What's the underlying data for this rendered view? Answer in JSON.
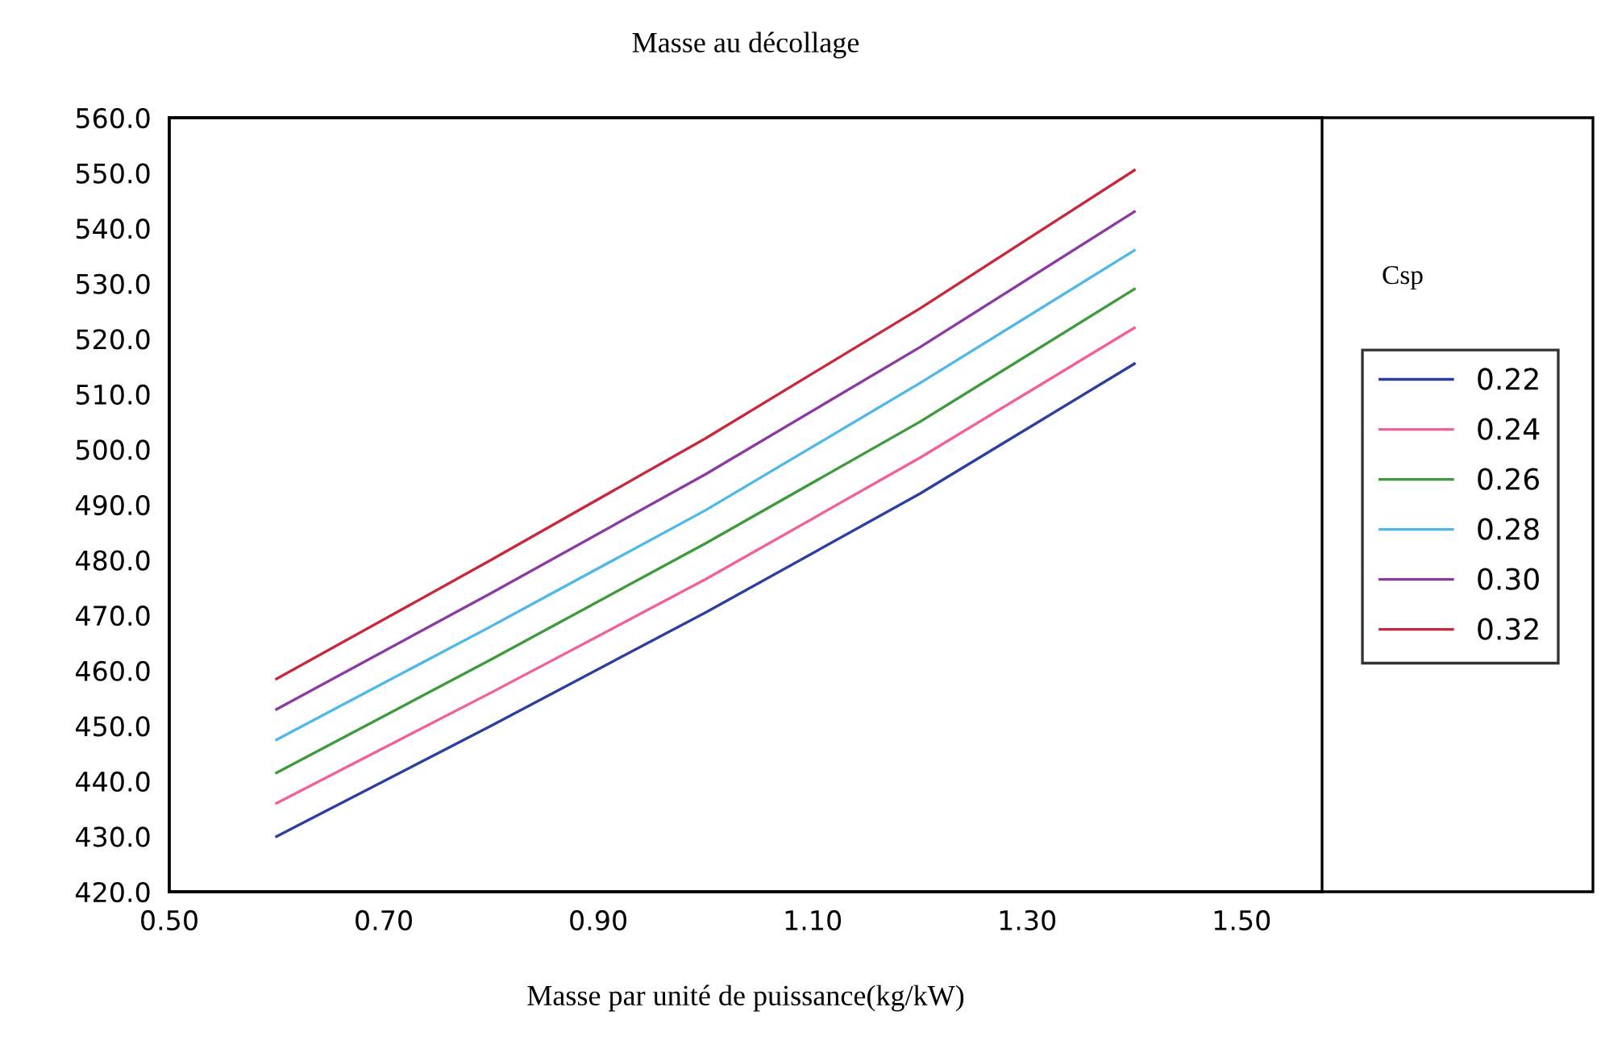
{
  "chart_data": {
    "type": "line",
    "title": "Masse au décollage",
    "xlabel": "Masse par unité de puissance(kg/kW)",
    "legend_title": "Csp",
    "legend": "right",
    "grid": false,
    "marker": "none",
    "line_style": "solid",
    "x": [
      0.6,
      0.8,
      1.0,
      1.2,
      1.4
    ],
    "xlim": [
      0.5,
      1.575
    ],
    "xticks": [
      {
        "value": 0.5,
        "label": "0.50"
      },
      {
        "value": 0.7,
        "label": "0.70"
      },
      {
        "value": 0.9,
        "label": "0.90"
      },
      {
        "value": 1.1,
        "label": "1.10"
      },
      {
        "value": 1.3,
        "label": "1.30"
      },
      {
        "value": 1.5,
        "label": "1.50"
      }
    ],
    "ylim": [
      420,
      560
    ],
    "yticks": [
      {
        "value": 420,
        "label": "420.0"
      },
      {
        "value": 430,
        "label": "430.0"
      },
      {
        "value": 440,
        "label": "440.0"
      },
      {
        "value": 450,
        "label": "450.0"
      },
      {
        "value": 460,
        "label": "460.0"
      },
      {
        "value": 470,
        "label": "470.0"
      },
      {
        "value": 480,
        "label": "480.0"
      },
      {
        "value": 490,
        "label": "490.0"
      },
      {
        "value": 500,
        "label": "500.0"
      },
      {
        "value": 510,
        "label": "510.0"
      },
      {
        "value": 520,
        "label": "520.0"
      },
      {
        "value": 530,
        "label": "530.0"
      },
      {
        "value": 540,
        "label": "540.0"
      },
      {
        "value": 550,
        "label": "550.0"
      },
      {
        "value": 560,
        "label": "560.0"
      }
    ],
    "series": [
      {
        "name": "0.22",
        "color": "#2c3e9e",
        "values": [
          430,
          450,
          470.5,
          492,
          515.5
        ]
      },
      {
        "name": "0.24",
        "color": "#f0609a",
        "values": [
          436,
          456,
          476.5,
          498.5,
          522
        ]
      },
      {
        "name": "0.26",
        "color": "#3d9a3d",
        "values": [
          441.5,
          462,
          483,
          505,
          529
        ]
      },
      {
        "name": "0.28",
        "color": "#4fb8e8",
        "values": [
          447.5,
          468,
          489,
          512,
          536
        ]
      },
      {
        "name": "0.30",
        "color": "#8a3aa0",
        "values": [
          453,
          474,
          495.5,
          518.5,
          543
        ]
      },
      {
        "name": "0.32",
        "color": "#c8283c",
        "values": [
          458.5,
          480,
          502,
          525.5,
          550.5
        ]
      }
    ]
  }
}
